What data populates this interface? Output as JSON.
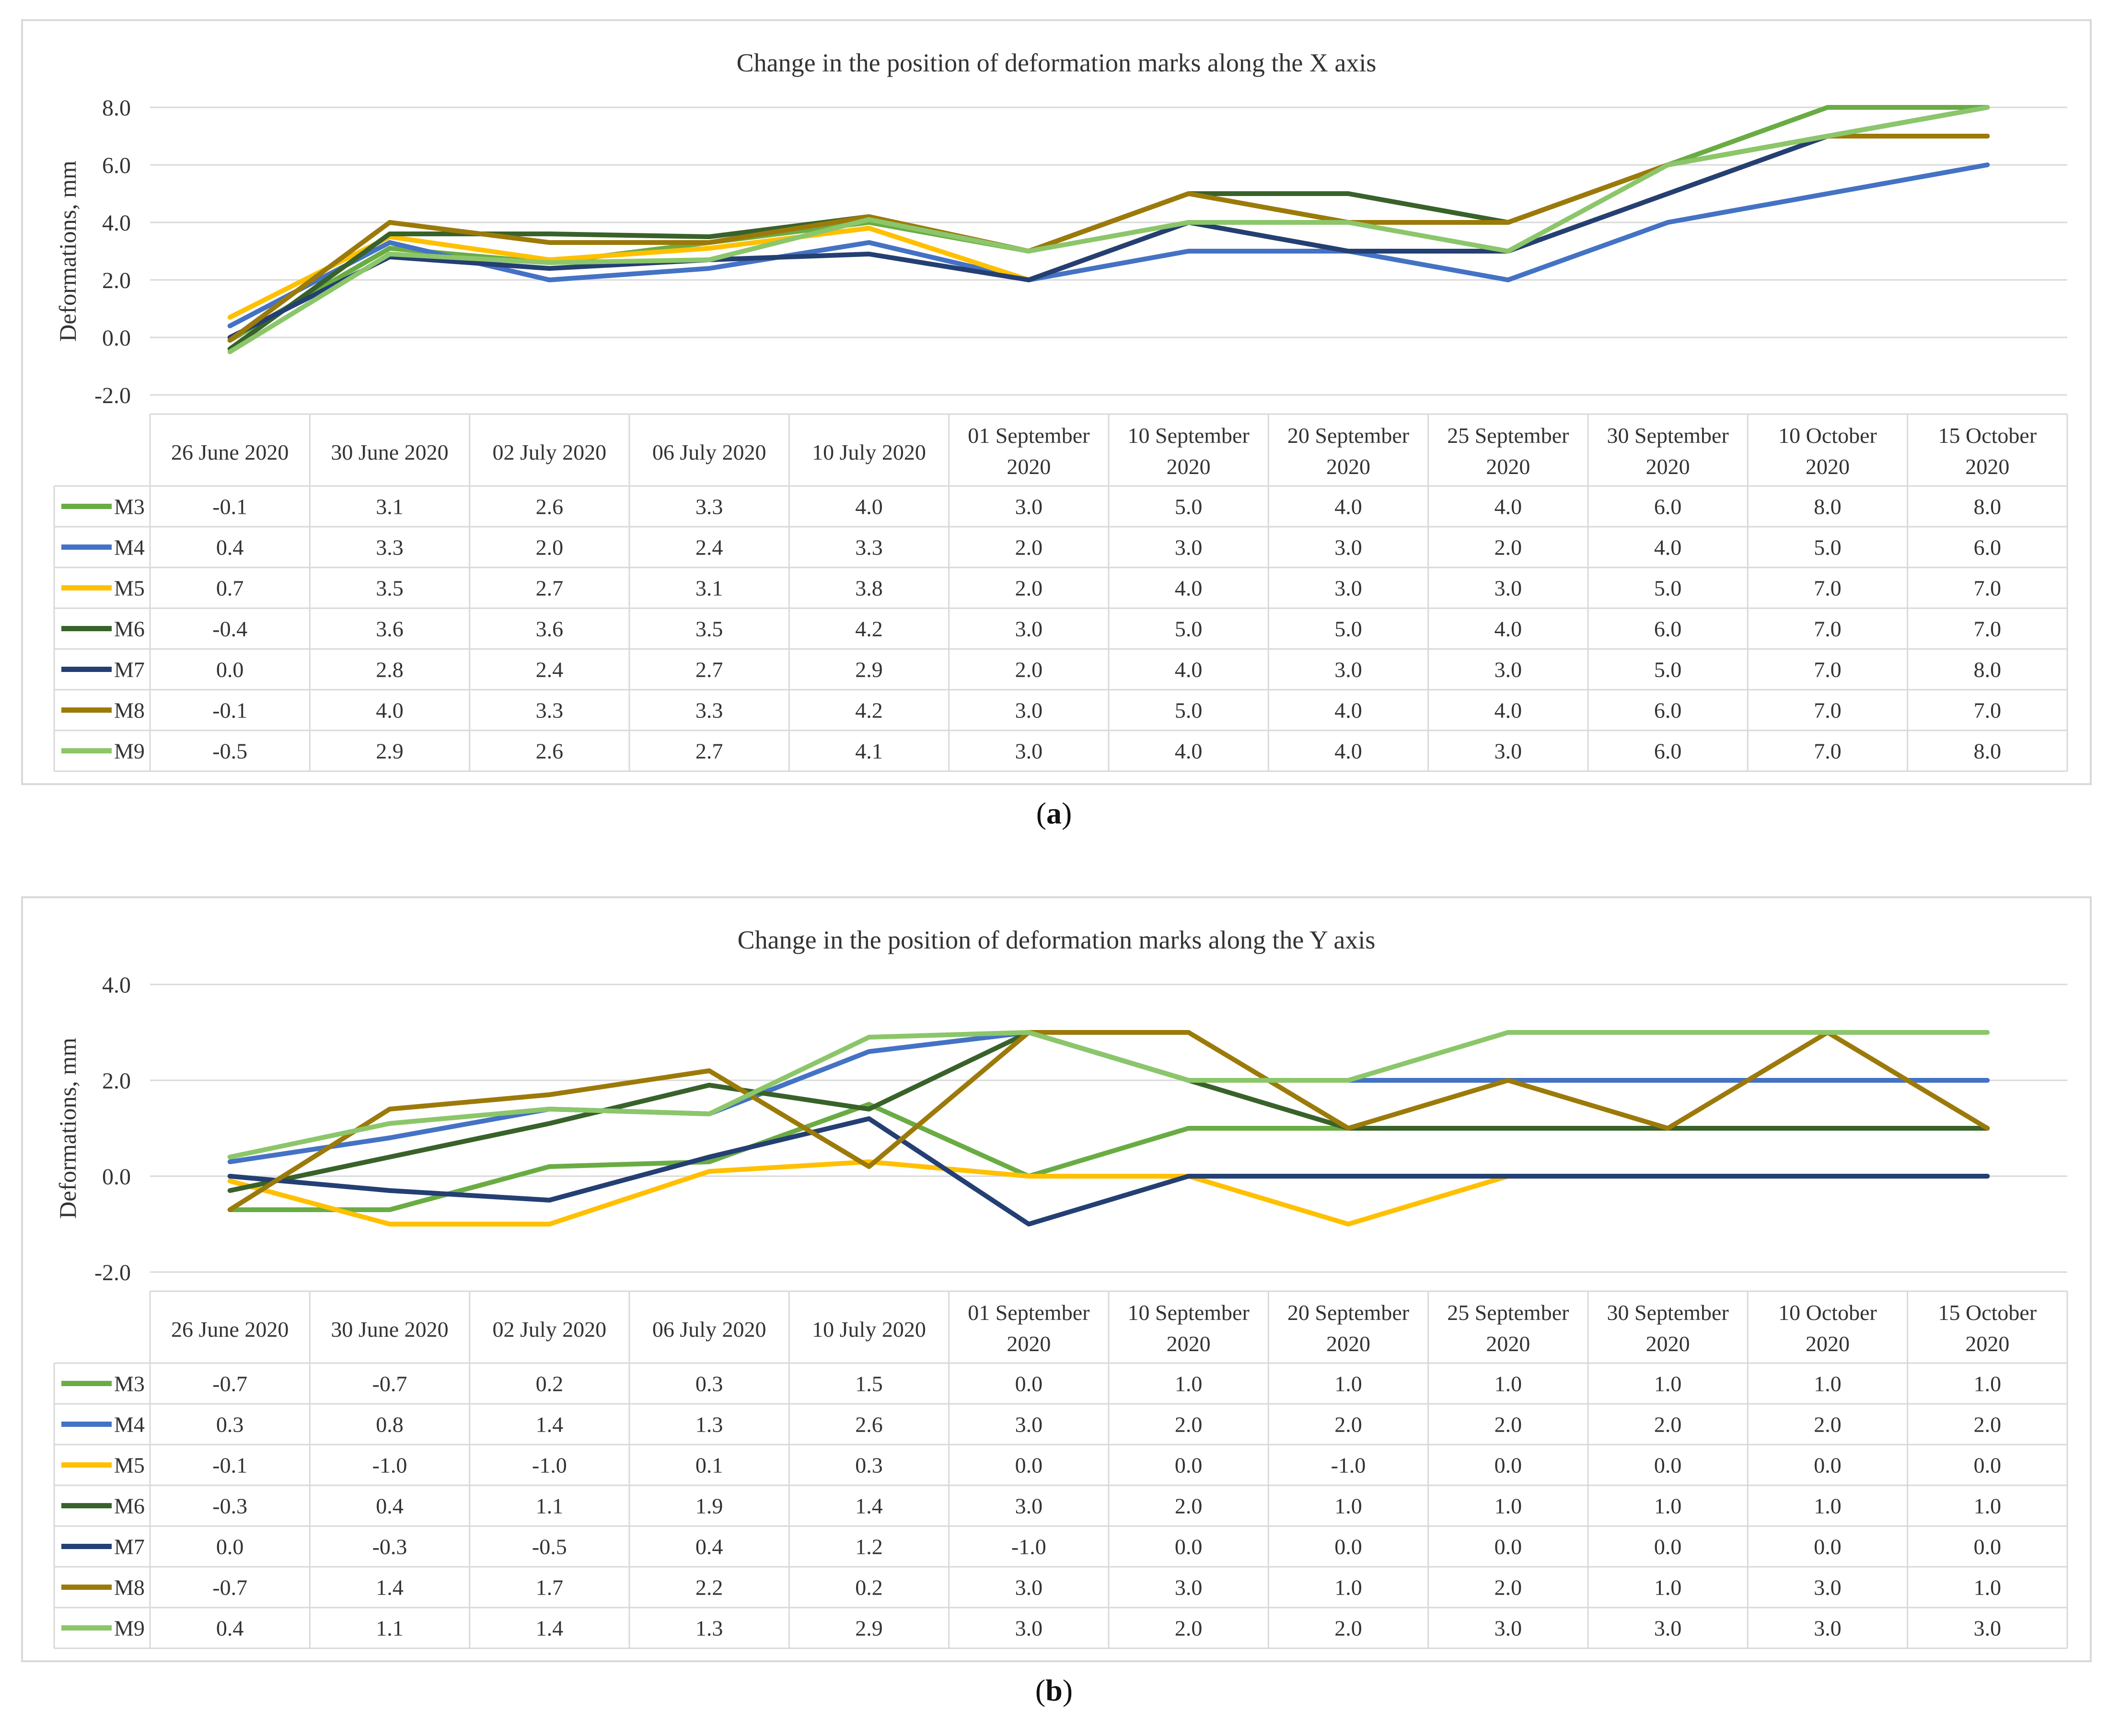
{
  "chart_data": [
    {
      "type": "line",
      "title": "Change in the position of deformation marks along the X axis",
      "ylabel": "Deformations, mm",
      "xlabel": "",
      "ylim": [
        -2.0,
        8.0
      ],
      "yticks": [
        -2.0,
        0.0,
        2.0,
        4.0,
        6.0,
        8.0
      ],
      "grid": true,
      "legend": "table-left",
      "categories": [
        "26 June 2020",
        "30 June 2020",
        "02 July 2020",
        "06 July 2020",
        "10 July 2020",
        "01 September 2020",
        "10 September 2020",
        "20 September 2020",
        "25 September 2020",
        "30 September 2020",
        "10 October 2020",
        "15 October 2020"
      ],
      "series": [
        {
          "name": "M3",
          "color": "#6aac44",
          "values": [
            -0.1,
            3.1,
            2.6,
            3.3,
            4.0,
            3.0,
            5.0,
            4.0,
            4.0,
            6.0,
            8.0,
            8.0
          ]
        },
        {
          "name": "M4",
          "color": "#4472c4",
          "values": [
            0.4,
            3.3,
            2.0,
            2.4,
            3.3,
            2.0,
            3.0,
            3.0,
            2.0,
            4.0,
            5.0,
            6.0
          ]
        },
        {
          "name": "M5",
          "color": "#ffc000",
          "values": [
            0.7,
            3.5,
            2.7,
            3.1,
            3.8,
            2.0,
            4.0,
            3.0,
            3.0,
            5.0,
            7.0,
            7.0
          ]
        },
        {
          "name": "M6",
          "color": "#38622a",
          "values": [
            -0.4,
            3.6,
            3.6,
            3.5,
            4.2,
            3.0,
            5.0,
            5.0,
            4.0,
            6.0,
            7.0,
            7.0
          ]
        },
        {
          "name": "M7",
          "color": "#243f73",
          "values": [
            0.0,
            2.8,
            2.4,
            2.7,
            2.9,
            2.0,
            4.0,
            3.0,
            3.0,
            5.0,
            7.0,
            8.0
          ]
        },
        {
          "name": "M8",
          "color": "#9c7a0a",
          "values": [
            -0.1,
            4.0,
            3.3,
            3.3,
            4.2,
            3.0,
            5.0,
            4.0,
            4.0,
            6.0,
            7.0,
            7.0
          ]
        },
        {
          "name": "M9",
          "color": "#8cc66a",
          "values": [
            -0.5,
            2.9,
            2.6,
            2.7,
            4.1,
            3.0,
            4.0,
            4.0,
            3.0,
            6.0,
            7.0,
            8.0
          ]
        }
      ]
    },
    {
      "type": "line",
      "title": "Change in the position of deformation marks along the Y axis",
      "ylabel": "Deformations, mm",
      "xlabel": "",
      "ylim": [
        -2.0,
        4.0
      ],
      "yticks": [
        -2.0,
        0.0,
        2.0,
        4.0
      ],
      "grid": true,
      "legend": "table-left",
      "categories": [
        "26 June 2020",
        "30 June 2020",
        "02 July 2020",
        "06 July 2020",
        "10 July 2020",
        "01 September 2020",
        "10 September 2020",
        "20 September 2020",
        "25 September 2020",
        "30 September 2020",
        "10 October 2020",
        "15 October 2020"
      ],
      "series": [
        {
          "name": "M3",
          "color": "#6aac44",
          "values": [
            -0.7,
            -0.7,
            0.2,
            0.3,
            1.5,
            0.0,
            1.0,
            1.0,
            1.0,
            1.0,
            1.0,
            1.0
          ]
        },
        {
          "name": "M4",
          "color": "#4472c4",
          "values": [
            0.3,
            0.8,
            1.4,
            1.3,
            2.6,
            3.0,
            2.0,
            2.0,
            2.0,
            2.0,
            2.0,
            2.0
          ]
        },
        {
          "name": "M5",
          "color": "#ffc000",
          "values": [
            -0.1,
            -1.0,
            -1.0,
            0.1,
            0.3,
            0.0,
            0.0,
            -1.0,
            0.0,
            0.0,
            0.0,
            0.0
          ]
        },
        {
          "name": "M6",
          "color": "#38622a",
          "values": [
            -0.3,
            0.4,
            1.1,
            1.9,
            1.4,
            3.0,
            2.0,
            1.0,
            1.0,
            1.0,
            1.0,
            1.0
          ]
        },
        {
          "name": "M7",
          "color": "#243f73",
          "values": [
            0.0,
            -0.3,
            -0.5,
            0.4,
            1.2,
            -1.0,
            0.0,
            0.0,
            0.0,
            0.0,
            0.0,
            0.0
          ]
        },
        {
          "name": "M8",
          "color": "#9c7a0a",
          "values": [
            -0.7,
            1.4,
            1.7,
            2.2,
            0.2,
            3.0,
            3.0,
            1.0,
            2.0,
            1.0,
            3.0,
            1.0
          ]
        },
        {
          "name": "M9",
          "color": "#8cc66a",
          "values": [
            0.4,
            1.1,
            1.4,
            1.3,
            2.9,
            3.0,
            2.0,
            2.0,
            3.0,
            3.0,
            3.0,
            3.0
          ]
        }
      ]
    }
  ],
  "captions": [
    "(a)",
    "(b)"
  ],
  "caption_letters": [
    "a",
    "b"
  ]
}
